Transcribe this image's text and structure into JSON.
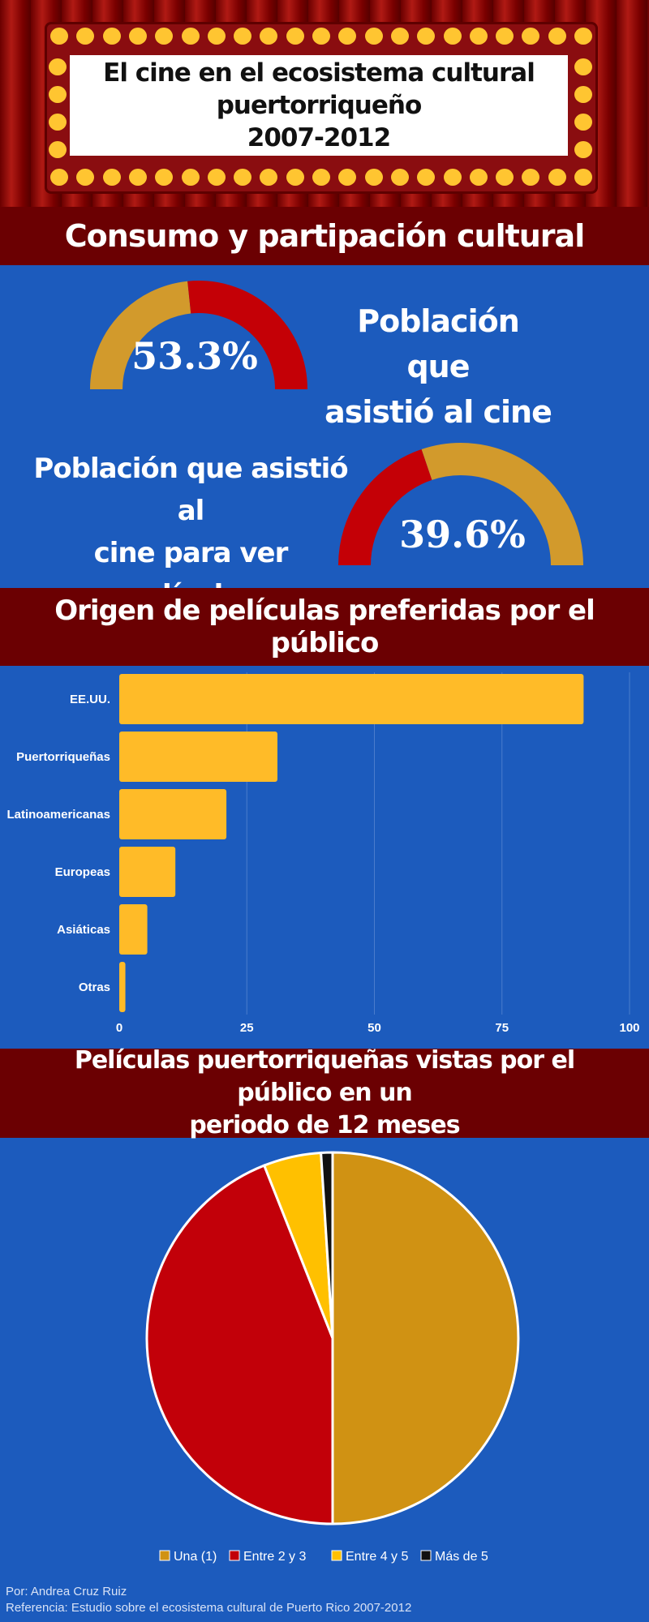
{
  "header": {
    "title": "El cine en el ecosistema cultural\npuertorriqueño\n2007-2012"
  },
  "section1": {
    "title": "Consumo y partipación cultural",
    "gauge1": {
      "label": "Población que\nasistió al cine",
      "value_text": "53.3%",
      "value": 53.3
    },
    "gauge2": {
      "label": "Población que asistió al\ncine para ver películas\npuertorriqueñas",
      "value_text": "39.6%",
      "value": 39.6
    }
  },
  "section2": {
    "title": "Origen de películas preferidas por el público"
  },
  "section3": {
    "title": "Películas puertorriqueñas vistas por el público en un\nperiodo de 12 meses"
  },
  "colors": {
    "gold": "#d29a2c",
    "red": "#c40006",
    "bar": "#ffbb28",
    "blue": "#1c5bbd",
    "band": "#6b0002"
  },
  "chart_data": [
    {
      "type": "bar",
      "orientation": "horizontal",
      "categories": [
        "EE.UU.",
        "Puertorriqueñas",
        "Latinoamericanas",
        "Europeas",
        "Asiáticas",
        "Otras"
      ],
      "values": [
        91,
        31,
        21,
        11,
        5.5,
        1.2
      ],
      "xticks": [
        "0",
        "25",
        "50",
        "75",
        "100"
      ],
      "xlim": [
        0,
        100
      ],
      "grid": true
    },
    {
      "type": "pie",
      "labels": [
        "Una (1)",
        "Entre 2 y 3",
        "Entre 4 y 5",
        "Más de 5"
      ],
      "values": [
        50,
        44,
        5,
        1
      ],
      "colors": [
        "#d09213",
        "#c20009",
        "#ffc000",
        "#111111"
      ],
      "legend": "bottom"
    }
  ],
  "footer": {
    "author": "Por: Andrea Cruz Ruiz",
    "reference": "Referencia: Estudio sobre el ecosistema cultural de Puerto Rico 2007-2012"
  }
}
